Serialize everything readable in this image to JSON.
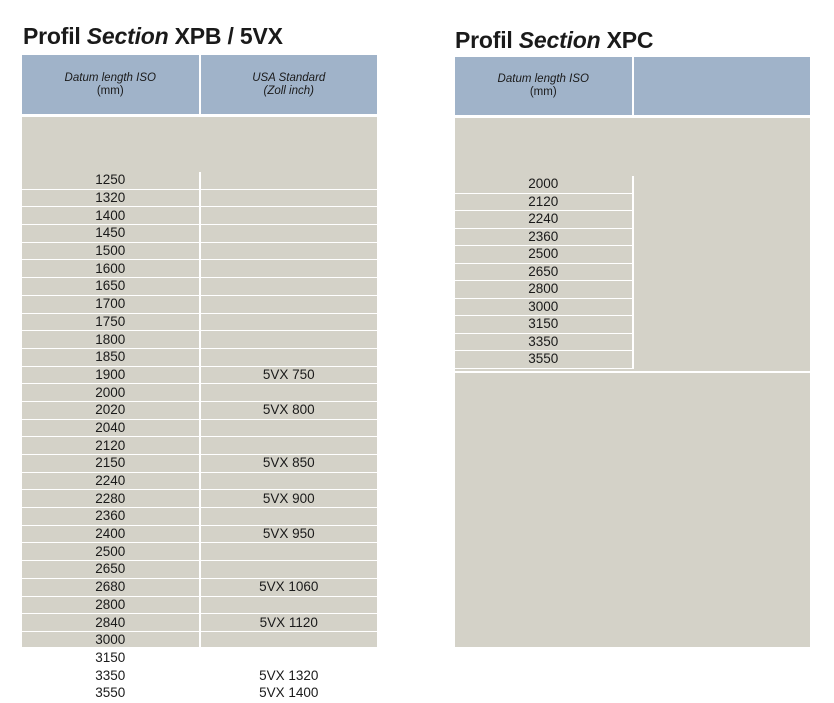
{
  "left": {
    "title_prefix": "Profil ",
    "title_italic": "Section",
    "title_suffix": " XPB / 5VX",
    "col1_line1": "Datum length ISO",
    "col1_line2": "(mm)",
    "col2_line1": "USA Standard",
    "col2_line2": "(Zoll inch)",
    "rows": [
      {
        "iso": "1250",
        "usa": ""
      },
      {
        "iso": "1320",
        "usa": ""
      },
      {
        "iso": "1400",
        "usa": ""
      },
      {
        "iso": "1450",
        "usa": ""
      },
      {
        "iso": "1500",
        "usa": ""
      },
      {
        "iso": "1600",
        "usa": ""
      },
      {
        "iso": "1650",
        "usa": ""
      },
      {
        "iso": "1700",
        "usa": ""
      },
      {
        "iso": "1750",
        "usa": ""
      },
      {
        "iso": "1800",
        "usa": ""
      },
      {
        "iso": "1850",
        "usa": ""
      },
      {
        "iso": "1900",
        "usa": "5VX 750"
      },
      {
        "iso": "2000",
        "usa": ""
      },
      {
        "iso": "2020",
        "usa": "5VX 800"
      },
      {
        "iso": "2040",
        "usa": ""
      },
      {
        "iso": "2120",
        "usa": ""
      },
      {
        "iso": "2150",
        "usa": "5VX 850"
      },
      {
        "iso": "2240",
        "usa": ""
      },
      {
        "iso": "2280",
        "usa": "5VX 900"
      },
      {
        "iso": "2360",
        "usa": ""
      },
      {
        "iso": "2400",
        "usa": "5VX 950"
      },
      {
        "iso": "2500",
        "usa": ""
      },
      {
        "iso": "2650",
        "usa": ""
      },
      {
        "iso": "2680",
        "usa": "5VX 1060"
      },
      {
        "iso": "2800",
        "usa": ""
      },
      {
        "iso": "2840",
        "usa": "5VX 1120"
      },
      {
        "iso": "3000",
        "usa": ""
      },
      {
        "iso": "3150",
        "usa": ""
      },
      {
        "iso": "3350",
        "usa": "5VX 1320"
      },
      {
        "iso": "3550",
        "usa": "5VX 1400"
      }
    ]
  },
  "right": {
    "title_prefix": "Profil ",
    "title_italic": "Section",
    "title_suffix": " XPC",
    "col1_line1": "Datum length ISO",
    "col1_line2": "(mm)",
    "rows": [
      "2000",
      "2120",
      "2240",
      "2360",
      "2500",
      "2650",
      "2800",
      "3000",
      "3150",
      "3350",
      "3550"
    ]
  }
}
